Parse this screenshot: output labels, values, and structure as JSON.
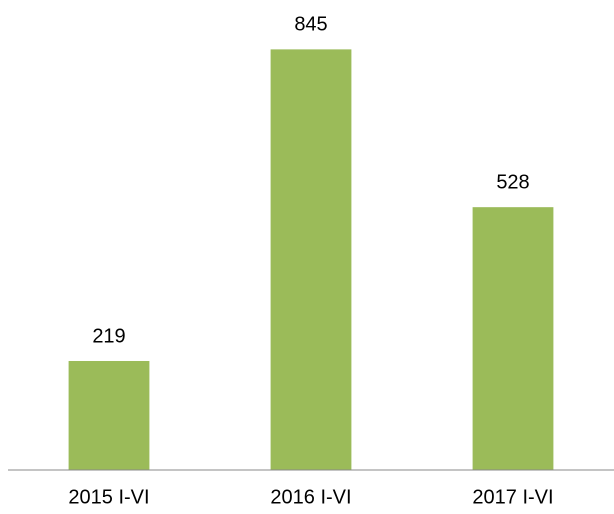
{
  "chart_data": {
    "type": "bar",
    "categories": [
      "2015 I-VI",
      "2016 I-VI",
      "2017 I-VI"
    ],
    "values": [
      219,
      845,
      528
    ],
    "color": "#9bbb59",
    "ylim": [
      0,
      900
    ]
  }
}
